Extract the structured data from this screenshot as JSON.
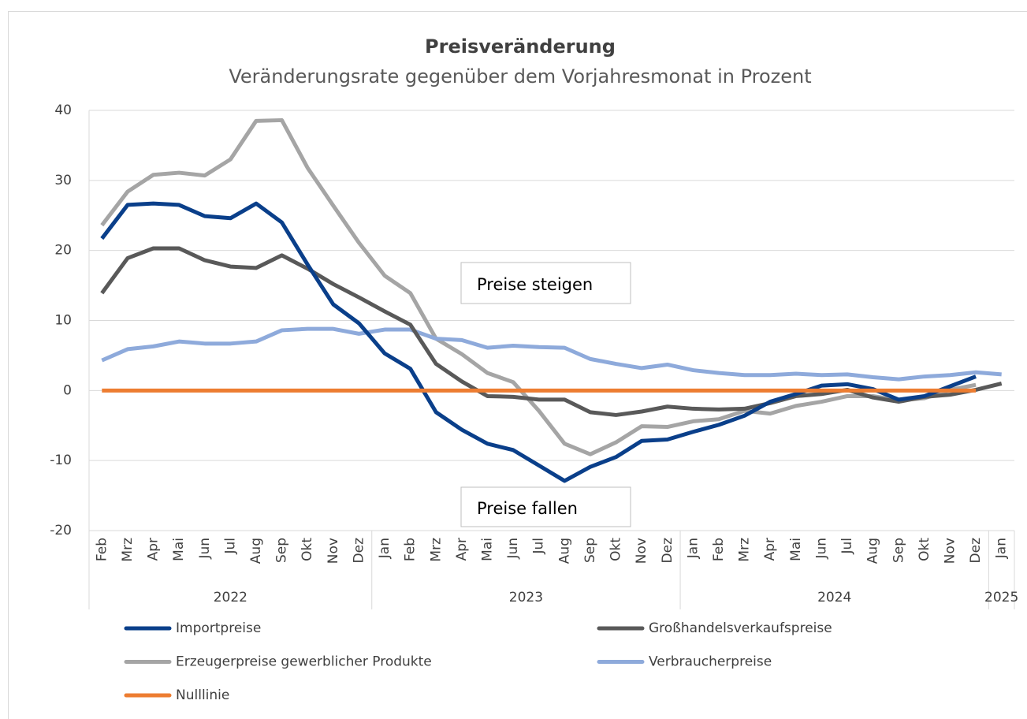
{
  "chart_data": {
    "type": "line",
    "title": "Preisveränderung",
    "subtitle": "Veränderungsrate gegenüber dem Vorjahresmonat in Prozent",
    "categories": [
      "Feb",
      "Mrz",
      "Apr",
      "Mai",
      "Jun",
      "Jul",
      "Aug",
      "Sep",
      "Okt",
      "Nov",
      "Dez",
      "Jan",
      "Feb",
      "Mrz",
      "Apr",
      "Mai",
      "Jun",
      "Jul",
      "Aug",
      "Sep",
      "Okt",
      "Nov",
      "Dez",
      "Jan",
      "Feb",
      "Mrz",
      "Apr",
      "Mai",
      "Jun",
      "Jul",
      "Aug",
      "Sep",
      "Okt",
      "Nov",
      "Dez",
      "Jan"
    ],
    "category_groups": [
      {
        "label": "2022",
        "size": 11
      },
      {
        "label": "2023",
        "size": 12
      },
      {
        "label": "2024",
        "size": 12
      },
      {
        "label": "2025",
        "size": 1
      }
    ],
    "series": [
      {
        "name": "Importpreise",
        "color": "#0a3f8a",
        "values": [
          21.7,
          26.5,
          26.7,
          26.5,
          24.9,
          24.6,
          26.7,
          24.0,
          18.0,
          12.3,
          9.6,
          5.3,
          3.1,
          -3.1,
          -5.6,
          -7.6,
          -8.5,
          -10.7,
          -12.9,
          -10.9,
          -9.5,
          -7.2,
          -7.0,
          -5.9,
          -4.9,
          -3.6,
          -1.6,
          -0.5,
          0.7,
          0.9,
          0.2,
          -1.3,
          -0.8,
          0.6,
          2.0,
          null
        ]
      },
      {
        "name": "Großhandelsverkaufspreise",
        "color": "#595959",
        "values": [
          13.9,
          18.9,
          20.3,
          20.3,
          18.6,
          17.7,
          17.5,
          19.3,
          17.4,
          15.2,
          13.3,
          11.3,
          9.4,
          3.8,
          1.3,
          -0.8,
          -0.9,
          -1.3,
          -1.3,
          -3.1,
          -3.5,
          -3.0,
          -2.3,
          -2.6,
          -2.7,
          -2.6,
          -1.8,
          -0.8,
          -0.5,
          0.1,
          -1.0,
          -1.6,
          -0.9,
          -0.6,
          0.1,
          1.0
        ]
      },
      {
        "name": "Erzeugerpreise gewerblicher Produkte",
        "color": "#a5a5a5",
        "values": [
          23.6,
          28.4,
          30.8,
          31.1,
          30.7,
          33.0,
          38.5,
          38.6,
          31.8,
          26.4,
          21.1,
          16.4,
          13.9,
          7.4,
          5.2,
          2.5,
          1.2,
          -2.9,
          -7.6,
          -9.1,
          -7.4,
          -5.1,
          -5.2,
          -4.4,
          -4.1,
          -2.9,
          -3.3,
          -2.2,
          -1.6,
          -0.8,
          -0.8,
          -1.4,
          -1.1,
          0.1,
          0.8,
          null
        ]
      },
      {
        "name": "Verbraucherpreise",
        "color": "#8eaadb",
        "values": [
          4.3,
          5.9,
          6.3,
          7.0,
          6.7,
          6.7,
          7.0,
          8.6,
          8.8,
          8.8,
          8.1,
          8.7,
          8.7,
          7.4,
          7.2,
          6.1,
          6.4,
          6.2,
          6.1,
          4.5,
          3.8,
          3.2,
          3.7,
          2.9,
          2.5,
          2.2,
          2.2,
          2.4,
          2.2,
          2.3,
          1.9,
          1.6,
          2.0,
          2.2,
          2.6,
          2.3
        ]
      },
      {
        "name": "Nulllinie",
        "color": "#ed7d31",
        "values": [
          0,
          0,
          0,
          0,
          0,
          0,
          0,
          0,
          0,
          0,
          0,
          0,
          0,
          0,
          0,
          0,
          0,
          0,
          0,
          0,
          0,
          0,
          0,
          0,
          0,
          0,
          0,
          0,
          0,
          0,
          0,
          0,
          0,
          0,
          0,
          null
        ]
      }
    ],
    "annotations": [
      "Preise steigen",
      "Preise fallen"
    ],
    "ylim": [
      -20,
      40
    ],
    "yticks": [
      -20,
      -10,
      0,
      10,
      20,
      30,
      40
    ],
    "grid": true
  }
}
